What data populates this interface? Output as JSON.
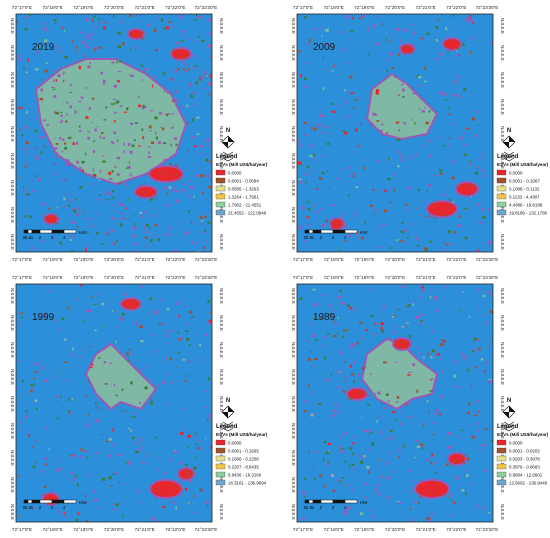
{
  "map_data": {
    "top_ticks": [
      "72°17'0\"E",
      "72°18'0\"E",
      "72°19'0\"E",
      "72°20'0\"E",
      "72°21'0\"E",
      "72°22'0\"E",
      "72°23'30\"E"
    ],
    "side_tick": "N.0.E.E",
    "scale_labels": [
      "0",
      "0.5",
      "1",
      "2",
      "3",
      "4"
    ],
    "scale_unit": "KM",
    "north_label": "N",
    "legend_title": "Legend",
    "class_colors": [
      "#e8262d",
      "#a0522d",
      "#e6e08c",
      "#f0c64a",
      "#8fcf9b",
      "#6fa6cc"
    ],
    "background_color": "#2b8fd9",
    "urban_color": "#7fb8a4",
    "edge_color": "#9b59b6",
    "green_color": "#3a7d3a",
    "panels": [
      {
        "year": "2019",
        "legend_subtitle": "ESVs (Mill US$/ha/year)",
        "items": [
          "0.0000",
          "0.0001 - 0.0584",
          "0.0585 - 1.3263",
          "1.3264 - 1.7961",
          "1.7962 - 21.4551",
          "21.4552 - 122.0948"
        ]
      },
      {
        "year": "2009",
        "legend_subtitle": "ESVs (Mill US$/ha/year)",
        "items": [
          "0.0000",
          "0.0001 - 0.1087",
          "0.1088 - 0.1132",
          "0.1133 - 4.4387",
          "4.4388 - 19.8188",
          "19.8189 - 132.1780"
        ]
      },
      {
        "year": "1999",
        "legend_subtitle": "ESVs (Mill US$/ha/year)",
        "items": [
          "0.0000",
          "0.0001 - 0.1665",
          "0.1666 - 0.2206",
          "0.2207 - 8.8435",
          "8.8436 - 16.3160",
          "16.3161 - 136.9694"
        ]
      },
      {
        "year": "1989",
        "legend_subtitle": "ESVs (Mill US$/ha/year)",
        "items": [
          "0.0000",
          "0.0001 - 0.0202",
          "0.0203 - 0.3978",
          "0.3979 - 0.8683",
          "0.8684 - 12.6601",
          "12.6602 - 136.9449"
        ]
      }
    ]
  }
}
